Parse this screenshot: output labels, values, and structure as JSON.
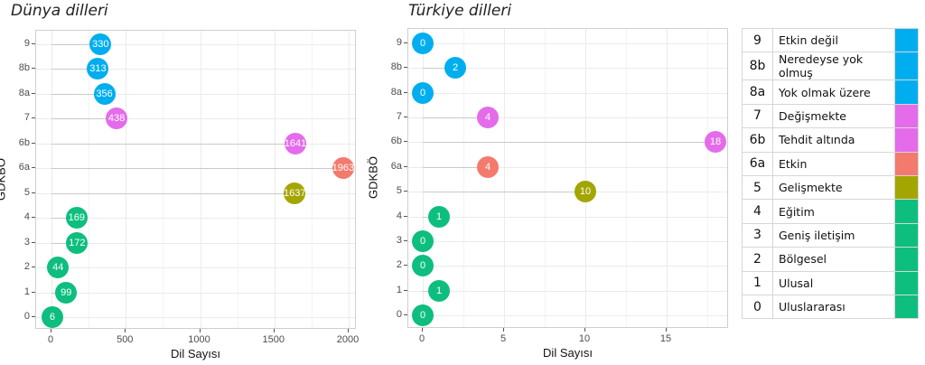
{
  "chart_data": [
    {
      "type": "scatter",
      "subtype": "lollipop",
      "title": "Dünya dilleri",
      "xlabel": "Dil Sayısı",
      "ylabel": "GDKBÖ",
      "xlim": [
        -100,
        2030
      ],
      "xticks": [
        0,
        500,
        1000,
        1500,
        2000
      ],
      "categories": [
        "9",
        "8b",
        "8a",
        "7",
        "6b",
        "6a",
        "5",
        "4",
        "3",
        "2",
        "1",
        "0"
      ],
      "values": [
        330,
        313,
        356,
        438,
        1641,
        1963,
        1637,
        169,
        172,
        44,
        99,
        6
      ],
      "colors": [
        "#00AEEF",
        "#00AEEF",
        "#00AEEF",
        "#E46CEB",
        "#E46CEB",
        "#F47A6E",
        "#A3A500",
        "#0DBE7F",
        "#0DBE7F",
        "#0DBE7F",
        "#0DBE7F",
        "#0DBE7F"
      ],
      "grid": true,
      "legend": "none"
    },
    {
      "type": "scatter",
      "subtype": "lollipop",
      "title": "Türkiye dilleri",
      "xlabel": "Dil Sayısı",
      "ylabel": "GDKBÖ",
      "xlim": [
        -0.9,
        18.9
      ],
      "xticks": [
        0,
        5,
        10,
        15
      ],
      "categories": [
        "9",
        "8b",
        "8a",
        "7",
        "6b",
        "6a",
        "5",
        "4",
        "3",
        "2",
        "1",
        "0"
      ],
      "values": [
        0,
        2,
        0,
        4,
        18,
        4,
        10,
        1,
        0,
        0,
        1,
        0
      ],
      "colors": [
        "#00AEEF",
        "#00AEEF",
        "#00AEEF",
        "#E46CEB",
        "#E46CEB",
        "#F47A6E",
        "#A3A500",
        "#0DBE7F",
        "#0DBE7F",
        "#0DBE7F",
        "#0DBE7F",
        "#0DBE7F"
      ],
      "grid": true,
      "legend": "none"
    }
  ],
  "legend_table": {
    "rows": [
      {
        "code": "9",
        "label": "Etkin değil",
        "color": "#00AEEF"
      },
      {
        "code": "8b",
        "label": "Neredeyse yok olmuş",
        "color": "#00AEEF"
      },
      {
        "code": "8a",
        "label": "Yok olmak üzere",
        "color": "#00AEEF"
      },
      {
        "code": "7",
        "label": "Değişmekte",
        "color": "#E46CEB"
      },
      {
        "code": "6b",
        "label": "Tehdit altında",
        "color": "#E46CEB"
      },
      {
        "code": "6a",
        "label": "Etkin",
        "color": "#F47A6E"
      },
      {
        "code": "5",
        "label": "Gelişmekte",
        "color": "#A3A500"
      },
      {
        "code": "4",
        "label": "Eğitim",
        "color": "#0DBE7F"
      },
      {
        "code": "3",
        "label": "Geniş iletişim",
        "color": "#0DBE7F"
      },
      {
        "code": "2",
        "label": "Bölgesel",
        "color": "#0DBE7F"
      },
      {
        "code": "1",
        "label": "Ulusal",
        "color": "#0DBE7F"
      },
      {
        "code": "0",
        "label": "Uluslararası",
        "color": "#0DBE7F"
      }
    ]
  }
}
